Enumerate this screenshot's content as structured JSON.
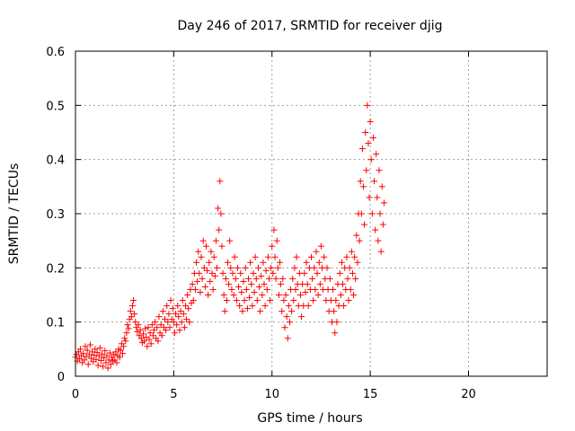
{
  "chart_data": {
    "type": "scatter",
    "title": "Day 246 of 2017, SRMTID for receiver djig",
    "xlabel": "GPS time / hours",
    "ylabel": "SRMTID / TECUs",
    "xlim": [
      0,
      24
    ],
    "ylim": [
      0,
      0.6
    ],
    "xticks": [
      0,
      5,
      10,
      15,
      20
    ],
    "xtick_labels": [
      "0",
      "5",
      "10",
      "15",
      "20"
    ],
    "yticks": [
      0,
      0.1,
      0.2,
      0.3,
      0.4,
      0.5,
      0.6
    ],
    "ytick_labels": [
      "0",
      "0.1",
      "0.2",
      "0.3",
      "0.4",
      "0.5",
      "0.6"
    ],
    "grid": true,
    "marker": "plus",
    "color": "#ff0000",
    "series": [
      {
        "name": "SRMTID",
        "points": [
          [
            0.0,
            0.035
          ],
          [
            0.05,
            0.04
          ],
          [
            0.1,
            0.028
          ],
          [
            0.15,
            0.045
          ],
          [
            0.2,
            0.032
          ],
          [
            0.25,
            0.05
          ],
          [
            0.3,
            0.038
          ],
          [
            0.35,
            0.025
          ],
          [
            0.4,
            0.042
          ],
          [
            0.45,
            0.03
          ],
          [
            0.5,
            0.055
          ],
          [
            0.55,
            0.036
          ],
          [
            0.6,
            0.048
          ],
          [
            0.65,
            0.022
          ],
          [
            0.7,
            0.04
          ],
          [
            0.75,
            0.058
          ],
          [
            0.8,
            0.033
          ],
          [
            0.85,
            0.045
          ],
          [
            0.9,
            0.027
          ],
          [
            0.95,
            0.039
          ],
          [
            1.0,
            0.05
          ],
          [
            1.05,
            0.031
          ],
          [
            1.1,
            0.044
          ],
          [
            1.15,
            0.02
          ],
          [
            1.2,
            0.037
          ],
          [
            1.25,
            0.052
          ],
          [
            1.3,
            0.029
          ],
          [
            1.35,
            0.041
          ],
          [
            1.4,
            0.018
          ],
          [
            1.45,
            0.034
          ],
          [
            1.5,
            0.047
          ],
          [
            1.55,
            0.025
          ],
          [
            1.6,
            0.038
          ],
          [
            1.65,
            0.015
          ],
          [
            1.7,
            0.03
          ],
          [
            1.75,
            0.043
          ],
          [
            1.8,
            0.022
          ],
          [
            1.85,
            0.035
          ],
          [
            1.9,
            0.028
          ],
          [
            1.95,
            0.04
          ],
          [
            2.0,
            0.03
          ],
          [
            2.05,
            0.045
          ],
          [
            2.1,
            0.025
          ],
          [
            2.15,
            0.038
          ],
          [
            2.2,
            0.05
          ],
          [
            2.25,
            0.035
          ],
          [
            2.3,
            0.048
          ],
          [
            2.35,
            0.06
          ],
          [
            2.4,
            0.042
          ],
          [
            2.45,
            0.055
          ],
          [
            2.5,
            0.07
          ],
          [
            2.55,
            0.065
          ],
          [
            2.6,
            0.08
          ],
          [
            2.65,
            0.095
          ],
          [
            2.7,
            0.088
          ],
          [
            2.75,
            0.105
          ],
          [
            2.8,
            0.12
          ],
          [
            2.85,
            0.11
          ],
          [
            2.9,
            0.13
          ],
          [
            2.95,
            0.14
          ],
          [
            3.0,
            0.115
          ],
          [
            3.05,
            0.1
          ],
          [
            3.1,
            0.09
          ],
          [
            3.15,
            0.082
          ],
          [
            3.2,
            0.095
          ],
          [
            3.25,
            0.075
          ],
          [
            3.3,
            0.085
          ],
          [
            3.35,
            0.07
          ],
          [
            3.4,
            0.062
          ],
          [
            3.45,
            0.078
          ],
          [
            3.5,
            0.065
          ],
          [
            3.55,
            0.088
          ],
          [
            3.6,
            0.072
          ],
          [
            3.65,
            0.055
          ],
          [
            3.7,
            0.09
          ],
          [
            3.75,
            0.068
          ],
          [
            3.8,
            0.08
          ],
          [
            3.85,
            0.06
          ],
          [
            3.9,
            0.095
          ],
          [
            3.95,
            0.075
          ],
          [
            4.0,
            0.085
          ],
          [
            4.05,
            0.1
          ],
          [
            4.1,
            0.07
          ],
          [
            4.15,
            0.09
          ],
          [
            4.2,
            0.065
          ],
          [
            4.25,
            0.11
          ],
          [
            4.3,
            0.08
          ],
          [
            4.35,
            0.095
          ],
          [
            4.4,
            0.075
          ],
          [
            4.45,
            0.12
          ],
          [
            4.5,
            0.09
          ],
          [
            4.55,
            0.105
          ],
          [
            4.6,
            0.085
          ],
          [
            4.65,
            0.13
          ],
          [
            4.7,
            0.1
          ],
          [
            4.75,
            0.115
          ],
          [
            4.8,
            0.09
          ],
          [
            4.85,
            0.14
          ],
          [
            4.9,
            0.105
          ],
          [
            4.95,
            0.125
          ],
          [
            5.0,
            0.1
          ],
          [
            5.05,
            0.08
          ],
          [
            5.1,
            0.115
          ],
          [
            5.15,
            0.095
          ],
          [
            5.2,
            0.13
          ],
          [
            5.25,
            0.11
          ],
          [
            5.3,
            0.085
          ],
          [
            5.35,
            0.12
          ],
          [
            5.4,
            0.1
          ],
          [
            5.45,
            0.14
          ],
          [
            5.5,
            0.115
          ],
          [
            5.55,
            0.09
          ],
          [
            5.6,
            0.13
          ],
          [
            5.65,
            0.105
          ],
          [
            5.7,
            0.15
          ],
          [
            5.75,
            0.125
          ],
          [
            5.8,
            0.1
          ],
          [
            5.85,
            0.16
          ],
          [
            5.9,
            0.135
          ],
          [
            5.95,
            0.17
          ],
          [
            6.0,
            0.14
          ],
          [
            6.05,
            0.19
          ],
          [
            6.1,
            0.16
          ],
          [
            6.15,
            0.21
          ],
          [
            6.2,
            0.175
          ],
          [
            6.25,
            0.23
          ],
          [
            6.3,
            0.19
          ],
          [
            6.35,
            0.155
          ],
          [
            6.4,
            0.22
          ],
          [
            6.45,
            0.18
          ],
          [
            6.5,
            0.25
          ],
          [
            6.55,
            0.2
          ],
          [
            6.6,
            0.165
          ],
          [
            6.65,
            0.24
          ],
          [
            6.7,
            0.195
          ],
          [
            6.75,
            0.15
          ],
          [
            6.8,
            0.21
          ],
          [
            6.85,
            0.175
          ],
          [
            6.9,
            0.23
          ],
          [
            6.95,
            0.19
          ],
          [
            7.0,
            0.16
          ],
          [
            7.05,
            0.22
          ],
          [
            7.1,
            0.185
          ],
          [
            7.15,
            0.25
          ],
          [
            7.2,
            0.2
          ],
          [
            7.25,
            0.31
          ],
          [
            7.3,
            0.27
          ],
          [
            7.35,
            0.36
          ],
          [
            7.4,
            0.3
          ],
          [
            7.45,
            0.24
          ],
          [
            7.5,
            0.19
          ],
          [
            7.55,
            0.15
          ],
          [
            7.6,
            0.12
          ],
          [
            7.65,
            0.18
          ],
          [
            7.7,
            0.14
          ],
          [
            7.75,
            0.21
          ],
          [
            7.8,
            0.17
          ],
          [
            7.85,
            0.25
          ],
          [
            7.9,
            0.2
          ],
          [
            7.95,
            0.16
          ],
          [
            8.0,
            0.19
          ],
          [
            8.05,
            0.15
          ],
          [
            8.1,
            0.22
          ],
          [
            8.15,
            0.18
          ],
          [
            8.2,
            0.14
          ],
          [
            8.25,
            0.2
          ],
          [
            8.3,
            0.165
          ],
          [
            8.35,
            0.13
          ],
          [
            8.4,
            0.19
          ],
          [
            8.45,
            0.155
          ],
          [
            8.5,
            0.12
          ],
          [
            8.55,
            0.175
          ],
          [
            8.6,
            0.14
          ],
          [
            8.65,
            0.2
          ],
          [
            8.7,
            0.16
          ],
          [
            8.75,
            0.125
          ],
          [
            8.8,
            0.18
          ],
          [
            8.85,
            0.145
          ],
          [
            8.9,
            0.21
          ],
          [
            8.95,
            0.17
          ],
          [
            9.0,
            0.13
          ],
          [
            9.05,
            0.19
          ],
          [
            9.1,
            0.155
          ],
          [
            9.15,
            0.22
          ],
          [
            9.2,
            0.18
          ],
          [
            9.25,
            0.14
          ],
          [
            9.3,
            0.2
          ],
          [
            9.35,
            0.165
          ],
          [
            9.4,
            0.12
          ],
          [
            9.45,
            0.185
          ],
          [
            9.5,
            0.15
          ],
          [
            9.55,
            0.21
          ],
          [
            9.6,
            0.17
          ],
          [
            9.65,
            0.13
          ],
          [
            9.7,
            0.195
          ],
          [
            9.75,
            0.16
          ],
          [
            9.8,
            0.22
          ],
          [
            9.85,
            0.18
          ],
          [
            9.9,
            0.14
          ],
          [
            9.95,
            0.2
          ],
          [
            10.0,
            0.24
          ],
          [
            10.05,
            0.19
          ],
          [
            10.1,
            0.27
          ],
          [
            10.15,
            0.22
          ],
          [
            10.2,
            0.18
          ],
          [
            10.25,
            0.25
          ],
          [
            10.3,
            0.2
          ],
          [
            10.35,
            0.15
          ],
          [
            10.4,
            0.21
          ],
          [
            10.45,
            0.17
          ],
          [
            10.5,
            0.12
          ],
          [
            10.55,
            0.18
          ],
          [
            10.6,
            0.14
          ],
          [
            10.65,
            0.09
          ],
          [
            10.7,
            0.15
          ],
          [
            10.75,
            0.11
          ],
          [
            10.8,
            0.07
          ],
          [
            10.85,
            0.13
          ],
          [
            10.9,
            0.1
          ],
          [
            10.95,
            0.16
          ],
          [
            11.0,
            0.12
          ],
          [
            11.05,
            0.18
          ],
          [
            11.1,
            0.14
          ],
          [
            11.15,
            0.2
          ],
          [
            11.2,
            0.16
          ],
          [
            11.25,
            0.22
          ],
          [
            11.3,
            0.17
          ],
          [
            11.35,
            0.13
          ],
          [
            11.4,
            0.19
          ],
          [
            11.45,
            0.15
          ],
          [
            11.5,
            0.11
          ],
          [
            11.55,
            0.17
          ],
          [
            11.6,
            0.13
          ],
          [
            11.65,
            0.19
          ],
          [
            11.7,
            0.155
          ],
          [
            11.75,
            0.21
          ],
          [
            11.8,
            0.17
          ],
          [
            11.85,
            0.13
          ],
          [
            11.9,
            0.2
          ],
          [
            11.95,
            0.16
          ],
          [
            12.0,
            0.22
          ],
          [
            12.05,
            0.18
          ],
          [
            12.1,
            0.14
          ],
          [
            12.15,
            0.2
          ],
          [
            12.2,
            0.16
          ],
          [
            12.25,
            0.23
          ],
          [
            12.3,
            0.19
          ],
          [
            12.35,
            0.15
          ],
          [
            12.4,
            0.21
          ],
          [
            12.45,
            0.17
          ],
          [
            12.5,
            0.24
          ],
          [
            12.55,
            0.2
          ],
          [
            12.6,
            0.16
          ],
          [
            12.65,
            0.22
          ],
          [
            12.7,
            0.18
          ],
          [
            12.75,
            0.14
          ],
          [
            12.8,
            0.2
          ],
          [
            12.85,
            0.16
          ],
          [
            12.9,
            0.12
          ],
          [
            12.95,
            0.18
          ],
          [
            13.0,
            0.14
          ],
          [
            13.05,
            0.1
          ],
          [
            13.1,
            0.16
          ],
          [
            13.15,
            0.12
          ],
          [
            13.2,
            0.08
          ],
          [
            13.25,
            0.14
          ],
          [
            13.3,
            0.1
          ],
          [
            13.35,
            0.17
          ],
          [
            13.4,
            0.13
          ],
          [
            13.45,
            0.19
          ],
          [
            13.5,
            0.15
          ],
          [
            13.55,
            0.21
          ],
          [
            13.6,
            0.17
          ],
          [
            13.65,
            0.13
          ],
          [
            13.7,
            0.2
          ],
          [
            13.75,
            0.16
          ],
          [
            13.8,
            0.22
          ],
          [
            13.85,
            0.18
          ],
          [
            13.9,
            0.14
          ],
          [
            13.95,
            0.2
          ],
          [
            14.0,
            0.16
          ],
          [
            14.05,
            0.23
          ],
          [
            14.1,
            0.19
          ],
          [
            14.15,
            0.15
          ],
          [
            14.2,
            0.22
          ],
          [
            14.25,
            0.18
          ],
          [
            14.3,
            0.26
          ],
          [
            14.35,
            0.21
          ],
          [
            14.4,
            0.3
          ],
          [
            14.45,
            0.25
          ],
          [
            14.5,
            0.36
          ],
          [
            14.55,
            0.3
          ],
          [
            14.6,
            0.42
          ],
          [
            14.65,
            0.35
          ],
          [
            14.7,
            0.28
          ],
          [
            14.75,
            0.45
          ],
          [
            14.8,
            0.38
          ],
          [
            14.85,
            0.5
          ],
          [
            14.9,
            0.43
          ],
          [
            14.95,
            0.33
          ],
          [
            15.0,
            0.47
          ],
          [
            15.05,
            0.4
          ],
          [
            15.1,
            0.3
          ],
          [
            15.15,
            0.44
          ],
          [
            15.2,
            0.36
          ],
          [
            15.25,
            0.27
          ],
          [
            15.3,
            0.41
          ],
          [
            15.35,
            0.33
          ],
          [
            15.4,
            0.25
          ],
          [
            15.45,
            0.38
          ],
          [
            15.5,
            0.3
          ],
          [
            15.55,
            0.23
          ],
          [
            15.6,
            0.35
          ],
          [
            15.65,
            0.28
          ],
          [
            15.7,
            0.32
          ]
        ]
      }
    ]
  }
}
